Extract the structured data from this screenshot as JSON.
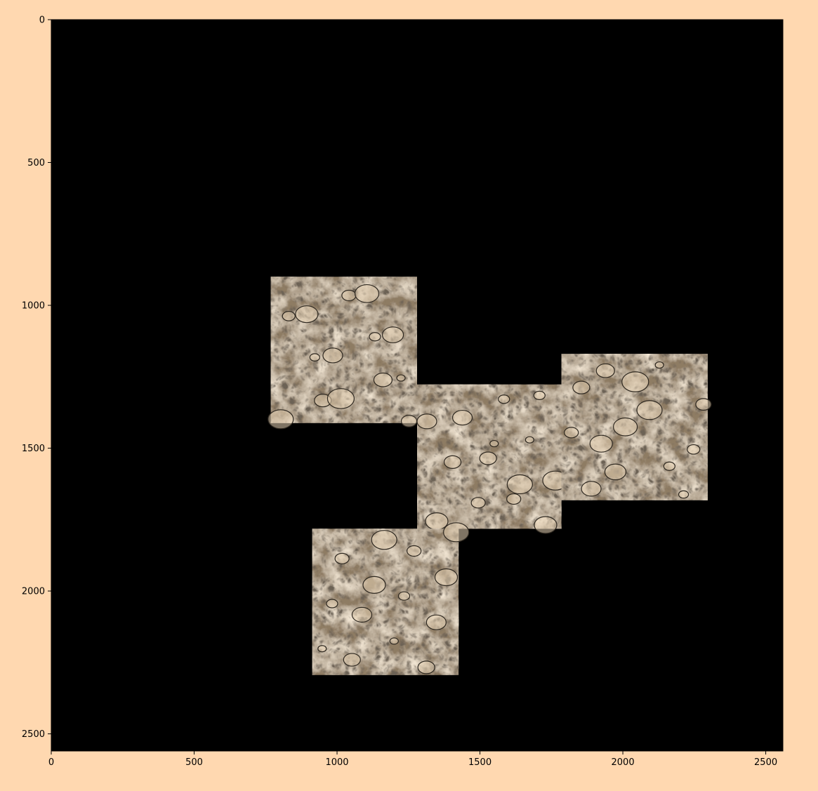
{
  "colors": {
    "figure_background": "#FFD8B0",
    "plot_background": "#000000",
    "tile_base": "#8E7B64",
    "tile_light": "#E7D3B6",
    "tile_dark": "#2E2820"
  },
  "chart_data": {
    "type": "heatmap",
    "title": "",
    "xlabel": "",
    "ylabel": "",
    "xlim": [
      0,
      2560
    ],
    "ylim": [
      2560,
      0
    ],
    "y_inverted": true,
    "grid": false,
    "x_ticks": [
      0,
      500,
      1000,
      1500,
      2000,
      2500
    ],
    "y_ticks": [
      0,
      500,
      1000,
      1500,
      2000,
      2500
    ],
    "x_tick_labels": [
      "0",
      "500",
      "1000",
      "1500",
      "2000",
      "2500"
    ],
    "y_tick_labels": [
      "0",
      "500",
      "1000",
      "1500",
      "2000",
      "2500"
    ],
    "tiles": [
      {
        "x0": 768,
        "x1": 1280,
        "y0": 900,
        "y1": 1412,
        "content": "electron micrograph of neural tissue"
      },
      {
        "x0": 1280,
        "x1": 1785,
        "y0": 1277,
        "y1": 1782,
        "content": "electron micrograph of neural tissue"
      },
      {
        "x0": 1785,
        "x1": 2297,
        "y0": 1170,
        "y1": 1682,
        "content": "electron micrograph of neural tissue"
      },
      {
        "x0": 913,
        "x1": 1425,
        "y0": 1782,
        "y1": 2294,
        "content": "electron micrograph of neural tissue"
      }
    ]
  }
}
